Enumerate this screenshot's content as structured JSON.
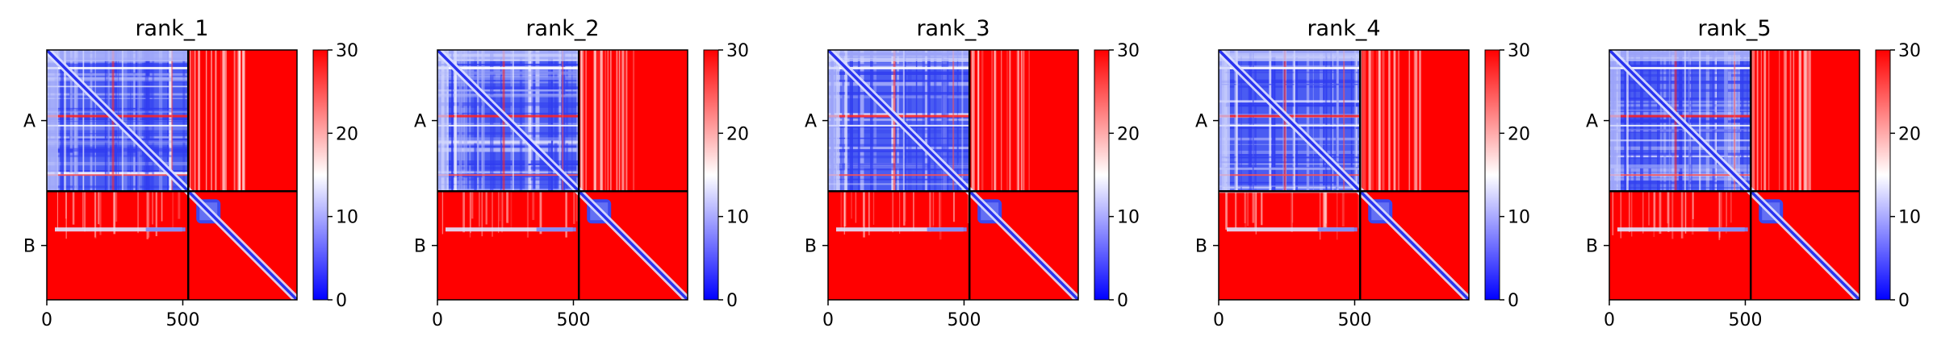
{
  "chart_data": [
    {
      "type": "heatmap",
      "title": "rank_1",
      "chains": [
        "A",
        "B"
      ],
      "chain_boundary": 520,
      "length": 920,
      "xticks": [
        {
          "value": 0,
          "label": "0"
        },
        {
          "value": 500,
          "label": "500"
        }
      ],
      "colorbar": {
        "ticks": [
          "0",
          "10",
          "20",
          "30"
        ],
        "range": [
          0,
          30
        ],
        "colors": [
          "#0000ff",
          "#ffffff",
          "#ff0000"
        ]
      }
    },
    {
      "type": "heatmap",
      "title": "rank_2",
      "chains": [
        "A",
        "B"
      ],
      "chain_boundary": 520,
      "length": 920,
      "xticks": [
        {
          "value": 0,
          "label": "0"
        },
        {
          "value": 500,
          "label": "500"
        }
      ],
      "colorbar": {
        "ticks": [
          "0",
          "10",
          "20",
          "30"
        ],
        "range": [
          0,
          30
        ],
        "colors": [
          "#0000ff",
          "#ffffff",
          "#ff0000"
        ]
      }
    },
    {
      "type": "heatmap",
      "title": "rank_3",
      "chains": [
        "A",
        "B"
      ],
      "chain_boundary": 520,
      "length": 920,
      "xticks": [
        {
          "value": 0,
          "label": "0"
        },
        {
          "value": 500,
          "label": "500"
        }
      ],
      "colorbar": {
        "ticks": [
          "0",
          "10",
          "20",
          "30"
        ],
        "range": [
          0,
          30
        ],
        "colors": [
          "#0000ff",
          "#ffffff",
          "#ff0000"
        ]
      }
    },
    {
      "type": "heatmap",
      "title": "rank_4",
      "chains": [
        "A",
        "B"
      ],
      "chain_boundary": 520,
      "length": 920,
      "xticks": [
        {
          "value": 0,
          "label": "0"
        },
        {
          "value": 500,
          "label": "500"
        }
      ],
      "colorbar": {
        "ticks": [
          "0",
          "10",
          "20",
          "30"
        ],
        "range": [
          0,
          30
        ],
        "colors": [
          "#0000ff",
          "#ffffff",
          "#ff0000"
        ]
      }
    },
    {
      "type": "heatmap",
      "title": "rank_5",
      "chains": [
        "A",
        "B"
      ],
      "chain_boundary": 520,
      "length": 920,
      "xticks": [
        {
          "value": 0,
          "label": "0"
        },
        {
          "value": 500,
          "label": "500"
        }
      ],
      "colorbar": {
        "ticks": [
          "0",
          "10",
          "20",
          "30"
        ],
        "range": [
          0,
          30
        ],
        "colors": [
          "#0000ff",
          "#ffffff",
          "#ff0000"
        ]
      }
    }
  ]
}
